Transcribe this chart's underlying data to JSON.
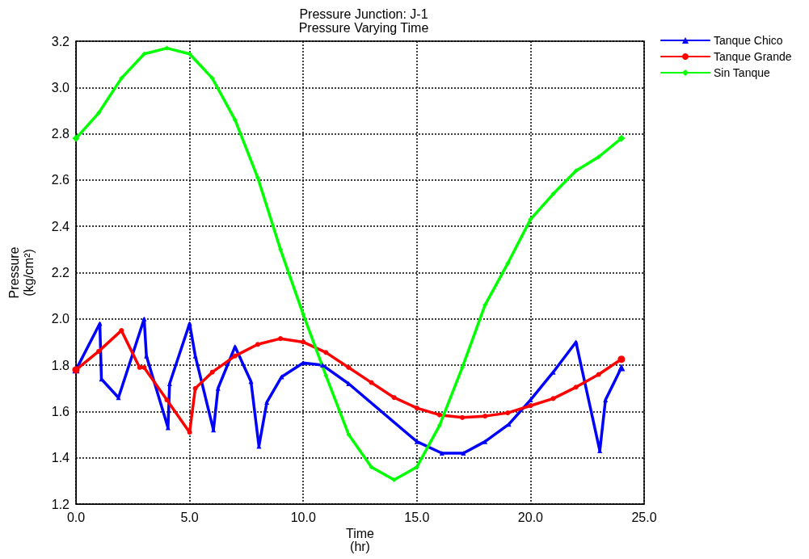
{
  "chart_data": {
    "type": "line",
    "title": "Pressure Junction: J-1",
    "subtitle": "Pressure Varying Time",
    "xlabel": "Time\n(hr)",
    "ylabel": "Pressure\n(kg/cm²)",
    "xlim": [
      0,
      25
    ],
    "xticks": [
      {
        "value": 0,
        "label": "0.0"
      },
      {
        "value": 5,
        "label": "5.0"
      },
      {
        "value": 10,
        "label": "10.0"
      },
      {
        "value": 15,
        "label": "15.0"
      },
      {
        "value": 20,
        "label": "20.0"
      },
      {
        "value": 25,
        "label": "25.0"
      }
    ],
    "ylim": [
      1.2,
      3.2
    ],
    "yticks": [
      {
        "value": 1.2,
        "label": "1.2"
      },
      {
        "value": 1.4,
        "label": "1.4"
      },
      {
        "value": 1.6,
        "label": "1.6"
      },
      {
        "value": 1.8,
        "label": "1.8"
      },
      {
        "value": 2.0,
        "label": "2.0"
      },
      {
        "value": 2.2,
        "label": "2.2"
      },
      {
        "value": 2.4,
        "label": "2.4"
      },
      {
        "value": 2.6,
        "label": "2.6"
      },
      {
        "value": 2.8,
        "label": "2.8"
      },
      {
        "value": 3.0,
        "label": "3.0"
      },
      {
        "value": 3.2,
        "label": "3.2"
      }
    ],
    "grid": true,
    "legend": "top right",
    "line_style": "solid",
    "series": [
      {
        "name": "Tanque Chico",
        "color": "#0000ff",
        "marker": "triangle",
        "x": [
          0,
          1.05,
          1.12,
          1.87,
          3.0,
          3.1,
          4.05,
          4.12,
          5.0,
          5.25,
          6.05,
          6.25,
          7.0,
          7.7,
          8.05,
          8.4,
          9.05,
          10.0,
          10.85,
          12.0,
          15.0,
          16.1,
          17.05,
          18.0,
          19.05,
          20.0,
          21.0,
          22.0,
          23.05,
          23.3,
          24.0
        ],
        "values": [
          1.78,
          1.98,
          1.74,
          1.66,
          2.0,
          1.84,
          1.53,
          1.72,
          1.98,
          1.84,
          1.52,
          1.7,
          1.88,
          1.73,
          1.45,
          1.64,
          1.75,
          1.81,
          1.8,
          1.72,
          1.47,
          1.42,
          1.42,
          1.47,
          1.545,
          1.65,
          1.77,
          1.9,
          1.43,
          1.65,
          1.79
        ]
      },
      {
        "name": "Tanque Grande",
        "color": "#ff0000",
        "marker": "circle",
        "x": [
          0,
          1,
          2,
          2.8,
          3,
          4,
          5,
          5.25,
          6,
          7,
          8,
          9,
          10,
          11,
          12,
          13,
          14,
          15,
          16,
          17,
          18,
          19,
          20,
          21,
          22,
          23,
          24
        ],
        "values": [
          1.78,
          1.86,
          1.95,
          1.79,
          1.79,
          1.65,
          1.51,
          1.7,
          1.77,
          1.84,
          1.89,
          1.915,
          1.9,
          1.855,
          1.79,
          1.725,
          1.66,
          1.615,
          1.585,
          1.574,
          1.58,
          1.594,
          1.625,
          1.656,
          1.705,
          1.76,
          1.826
        ]
      },
      {
        "name": "Sin Tanque",
        "color": "#00ff00",
        "marker": "diamond",
        "x": [
          0,
          1,
          2,
          3,
          4,
          5,
          6,
          7,
          8,
          9,
          10,
          11,
          12,
          13,
          14,
          15,
          16,
          17,
          18,
          19,
          20,
          21,
          22,
          23,
          24
        ],
        "values": [
          2.78,
          2.89,
          3.04,
          3.145,
          3.17,
          3.145,
          3.04,
          2.86,
          2.61,
          2.3,
          2.02,
          1.755,
          1.5,
          1.36,
          1.305,
          1.36,
          1.54,
          1.79,
          2.06,
          2.24,
          2.43,
          2.54,
          2.64,
          2.7,
          2.78
        ]
      }
    ]
  }
}
